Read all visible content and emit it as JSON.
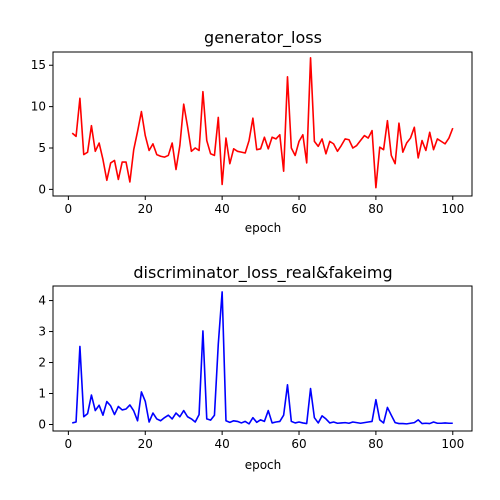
{
  "chart_data": [
    {
      "type": "line",
      "title": "generator_loss",
      "xlabel": "epoch",
      "ylabel": "",
      "xlim": [
        -4,
        105
      ],
      "ylim": [
        -0.8,
        16.6
      ],
      "xticks": [
        0,
        20,
        40,
        60,
        80,
        100
      ],
      "yticks": [
        0,
        5,
        10,
        15
      ],
      "grid": false,
      "color": "#ff0000",
      "series": [
        {
          "x": [
            1,
            2,
            3,
            4,
            5,
            6,
            7,
            8,
            9,
            10,
            11,
            12,
            13,
            14,
            15,
            16,
            17,
            18,
            19,
            20,
            21,
            22,
            23,
            24,
            25,
            26,
            27,
            28,
            29,
            30,
            31,
            32,
            33,
            34,
            35,
            36,
            37,
            38,
            39,
            40,
            41,
            42,
            43,
            44,
            45,
            46,
            47,
            48,
            49,
            50,
            51,
            52,
            53,
            54,
            55,
            56,
            57,
            58,
            59,
            60,
            61,
            62,
            63,
            64,
            65,
            66,
            67,
            68,
            69,
            70,
            71,
            72,
            73,
            74,
            75,
            76,
            77,
            78,
            79,
            80,
            81,
            82,
            83,
            84,
            85,
            86,
            87,
            88,
            89,
            90,
            91,
            92,
            93,
            94,
            95,
            96,
            97,
            98,
            99,
            100
          ],
          "values": [
            6.8,
            6.4,
            11.0,
            4.2,
            4.5,
            7.7,
            4.6,
            5.6,
            3.6,
            1.1,
            3.2,
            3.5,
            1.2,
            3.3,
            3.3,
            0.9,
            4.8,
            7.0,
            9.4,
            6.5,
            4.7,
            5.5,
            4.2,
            4.0,
            3.9,
            4.1,
            5.6,
            2.4,
            5.3,
            10.3,
            7.6,
            4.6,
            5.0,
            4.7,
            11.8,
            5.9,
            4.3,
            4.1,
            8.7,
            0.6,
            6.2,
            3.1,
            4.9,
            4.6,
            4.5,
            4.4,
            5.9,
            8.6,
            4.8,
            4.9,
            6.3,
            4.9,
            6.3,
            6.1,
            6.6,
            2.2,
            13.6,
            5.0,
            4.1,
            5.8,
            6.6,
            3.2,
            15.9,
            5.8,
            5.2,
            6.1,
            4.3,
            5.8,
            5.5,
            4.6,
            5.3,
            6.1,
            6.0,
            5.0,
            5.3,
            5.9,
            6.5,
            6.2,
            7.1,
            0.2,
            5.1,
            4.8,
            8.3,
            4.1,
            3.1,
            8.0,
            4.5,
            5.6,
            6.2,
            7.5,
            3.8,
            5.9,
            4.7,
            6.9,
            4.8,
            6.1,
            5.8,
            5.5,
            6.2,
            7.4
          ]
        }
      ]
    },
    {
      "type": "line",
      "title": "discriminator_loss_real&fakeimg",
      "xlabel": "epoch",
      "ylabel": "",
      "xlim": [
        -4,
        105
      ],
      "ylim": [
        -0.21,
        4.47
      ],
      "xticks": [
        0,
        20,
        40,
        60,
        80,
        100
      ],
      "yticks": [
        0,
        1,
        2,
        3,
        4
      ],
      "grid": false,
      "color": "#0000ff",
      "series": [
        {
          "x": [
            1,
            2,
            3,
            4,
            5,
            6,
            7,
            8,
            9,
            10,
            11,
            12,
            13,
            14,
            15,
            16,
            17,
            18,
            19,
            20,
            21,
            22,
            23,
            24,
            25,
            26,
            27,
            28,
            29,
            30,
            31,
            32,
            33,
            34,
            35,
            36,
            37,
            38,
            39,
            40,
            41,
            42,
            43,
            44,
            45,
            46,
            47,
            48,
            49,
            50,
            51,
            52,
            53,
            54,
            55,
            56,
            57,
            58,
            59,
            60,
            61,
            62,
            63,
            64,
            65,
            66,
            67,
            68,
            69,
            70,
            71,
            72,
            73,
            74,
            75,
            76,
            77,
            78,
            79,
            80,
            81,
            82,
            83,
            84,
            85,
            86,
            87,
            88,
            89,
            90,
            91,
            92,
            93,
            94,
            95,
            96,
            97,
            98,
            99,
            100
          ],
          "values": [
            0.05,
            0.08,
            2.52,
            0.25,
            0.35,
            0.95,
            0.45,
            0.62,
            0.3,
            0.74,
            0.6,
            0.32,
            0.58,
            0.47,
            0.5,
            0.63,
            0.44,
            0.12,
            1.05,
            0.75,
            0.08,
            0.37,
            0.18,
            0.12,
            0.22,
            0.3,
            0.18,
            0.37,
            0.25,
            0.45,
            0.25,
            0.18,
            0.08,
            0.32,
            3.02,
            0.18,
            0.14,
            0.3,
            2.6,
            4.28,
            0.12,
            0.07,
            0.12,
            0.1,
            0.05,
            0.1,
            0.02,
            0.22,
            0.07,
            0.15,
            0.1,
            0.45,
            0.05,
            0.08,
            0.1,
            0.3,
            1.28,
            0.1,
            0.05,
            0.08,
            0.05,
            0.03,
            1.16,
            0.22,
            0.05,
            0.28,
            0.18,
            0.05,
            0.08,
            0.04,
            0.05,
            0.06,
            0.04,
            0.08,
            0.06,
            0.04,
            0.06,
            0.08,
            0.1,
            0.8,
            0.15,
            0.05,
            0.55,
            0.3,
            0.06,
            0.03,
            0.03,
            0.02,
            0.04,
            0.06,
            0.15,
            0.03,
            0.04,
            0.03,
            0.08,
            0.04,
            0.04,
            0.05,
            0.04,
            0.04
          ]
        }
      ]
    }
  ]
}
